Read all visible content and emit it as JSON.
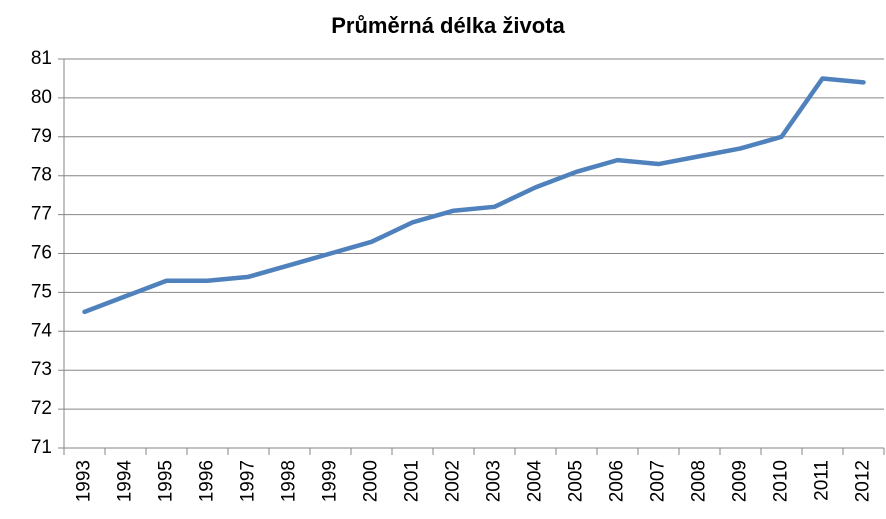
{
  "chart_data": {
    "type": "line",
    "title": "Průměrná délka života",
    "categories": [
      "1993",
      "1994",
      "1995",
      "1996",
      "1997",
      "1998",
      "1999",
      "2000",
      "2001",
      "2002",
      "2003",
      "2004",
      "2005",
      "2006",
      "2007",
      "2008",
      "2009",
      "2010",
      "2011",
      "2012"
    ],
    "series": [
      {
        "color": "#4f81bd",
        "values": [
          74.5,
          74.9,
          75.3,
          75.3,
          75.4,
          75.7,
          76.0,
          76.3,
          76.8,
          77.1,
          77.2,
          77.7,
          78.1,
          78.4,
          78.3,
          78.5,
          78.7,
          79.0,
          80.5,
          80.4
        ]
      }
    ],
    "ylim": [
      71,
      81
    ],
    "yticks": [
      71,
      72,
      73,
      74,
      75,
      76,
      77,
      78,
      79,
      80,
      81
    ],
    "grid": true
  }
}
